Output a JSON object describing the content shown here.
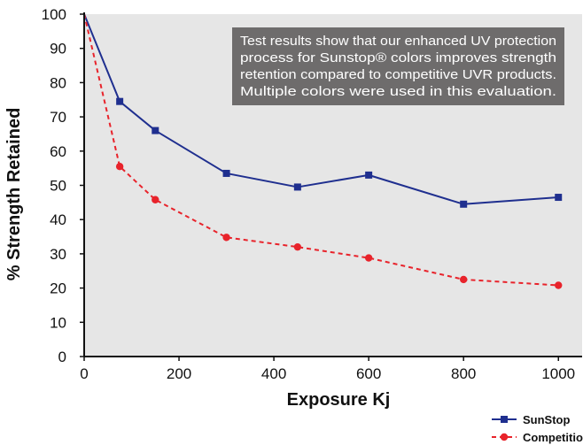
{
  "chart_data": {
    "type": "line",
    "title": "",
    "xlabel": "Exposure Kj",
    "ylabel": "% Strength Retained",
    "xlim": [
      0,
      1050
    ],
    "ylim": [
      0,
      100
    ],
    "xticks": [
      0,
      200,
      400,
      600,
      800,
      1000
    ],
    "yticks": [
      0,
      10,
      20,
      30,
      40,
      50,
      60,
      70,
      80,
      90,
      100
    ],
    "grid": false,
    "legend_position": "bottom-right",
    "annotation": [
      "Test results show that our enhanced UV protection",
      "process for Sunstop® colors improves strength",
      "retention compared to competitive UVR products.",
      "Multiple colors were used in this evaluation."
    ],
    "series": [
      {
        "name": "SunStop",
        "color": "#1f2f8f",
        "line_style": "solid",
        "marker": "square",
        "x": [
          0,
          75,
          150,
          300,
          450,
          600,
          800,
          1000
        ],
        "y": [
          100,
          74.5,
          66,
          53.5,
          49.5,
          53,
          44.5,
          46.5
        ]
      },
      {
        "name": "Competition",
        "color": "#e8232b",
        "line_style": "dashed",
        "marker": "circle",
        "x": [
          0,
          75,
          150,
          300,
          450,
          600,
          800,
          1000
        ],
        "y": [
          100,
          55.5,
          45.8,
          34.8,
          32,
          28.8,
          22.5,
          20.8
        ]
      }
    ],
    "colors": {
      "plot_background": "#e6e6e6",
      "annotation_box": "#6e6c6c",
      "annotation_text": "#ffffff",
      "axis": "#111111"
    }
  }
}
